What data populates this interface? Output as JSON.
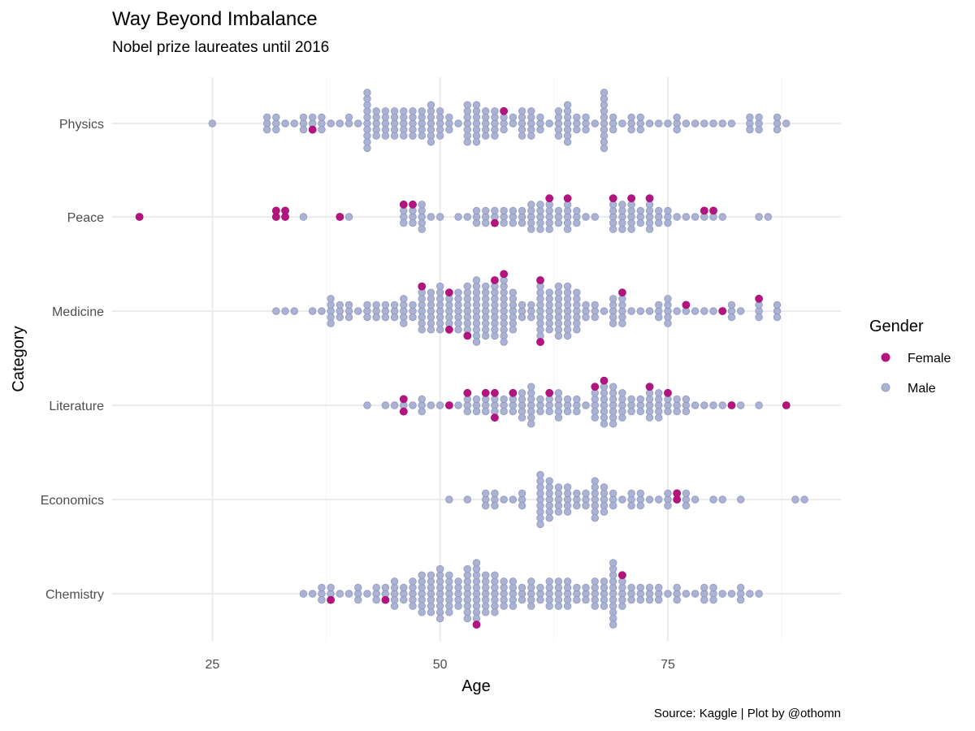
{
  "chart_data": {
    "type": "scatter",
    "subtype": "beeswarm",
    "title": "Way Beyond Imbalance",
    "subtitle": "Nobel prize laureates until 2016",
    "xlabel": "Age",
    "ylabel": "Category",
    "caption": "Source: Kaggle | Plot by @othomn",
    "xlim": [
      14,
      94
    ],
    "x_ticks": [
      25,
      50,
      75
    ],
    "grid": true,
    "legend": {
      "title": "Gender",
      "placement": "right",
      "entries": [
        {
          "name": "Female",
          "color": "#b5137f"
        },
        {
          "name": "Male",
          "color": "#aab3d3"
        }
      ]
    },
    "colors": {
      "Female": "#b5137f",
      "Male": "#aab3d3",
      "MaleStroke": "#8e97bf"
    },
    "categories": [
      "Physics",
      "Peace",
      "Medicine",
      "Literature",
      "Economics",
      "Chemistry"
    ],
    "series": [
      {
        "category": "Physics",
        "female": [
          36,
          57
        ],
        "male": [
          [
            25,
            1
          ],
          [
            31,
            3
          ],
          [
            32,
            3
          ],
          [
            33,
            1
          ],
          [
            34,
            1
          ],
          [
            35,
            3
          ],
          [
            36,
            2
          ],
          [
            37,
            3
          ],
          [
            38,
            1
          ],
          [
            39,
            1
          ],
          [
            40,
            2
          ],
          [
            41,
            1
          ],
          [
            42,
            10
          ],
          [
            43,
            5
          ],
          [
            44,
            5
          ],
          [
            45,
            5
          ],
          [
            46,
            5
          ],
          [
            47,
            5
          ],
          [
            48,
            5
          ],
          [
            49,
            7
          ],
          [
            50,
            5
          ],
          [
            51,
            3
          ],
          [
            52,
            1
          ],
          [
            53,
            7
          ],
          [
            54,
            7
          ],
          [
            55,
            5
          ],
          [
            56,
            5
          ],
          [
            57,
            3
          ],
          [
            58,
            2
          ],
          [
            59,
            5
          ],
          [
            60,
            5
          ],
          [
            61,
            3
          ],
          [
            62,
            1
          ],
          [
            63,
            5
          ],
          [
            64,
            7
          ],
          [
            65,
            3
          ],
          [
            66,
            3
          ],
          [
            67,
            1
          ],
          [
            68,
            10
          ],
          [
            69,
            3
          ],
          [
            70,
            1
          ],
          [
            71,
            3
          ],
          [
            72,
            3
          ],
          [
            73,
            1
          ],
          [
            74,
            1
          ],
          [
            75,
            1
          ],
          [
            76,
            3
          ],
          [
            77,
            1
          ],
          [
            78,
            1
          ],
          [
            79,
            1
          ],
          [
            80,
            1
          ],
          [
            81,
            1
          ],
          [
            82,
            1
          ],
          [
            84,
            3
          ],
          [
            85,
            3
          ],
          [
            87,
            3
          ],
          [
            88,
            1
          ]
        ]
      },
      {
        "category": "Peace",
        "female": [
          17,
          32,
          32,
          33,
          33,
          39,
          46,
          47,
          56,
          62,
          64,
          69,
          71,
          73,
          79,
          80
        ],
        "male": [
          [
            35,
            1
          ],
          [
            40,
            1
          ],
          [
            46,
            3
          ],
          [
            47,
            3
          ],
          [
            48,
            5
          ],
          [
            49,
            1
          ],
          [
            50,
            1
          ],
          [
            52,
            1
          ],
          [
            53,
            1
          ],
          [
            54,
            3
          ],
          [
            55,
            3
          ],
          [
            56,
            2
          ],
          [
            57,
            3
          ],
          [
            58,
            3
          ],
          [
            59,
            3
          ],
          [
            60,
            5
          ],
          [
            61,
            5
          ],
          [
            62,
            5
          ],
          [
            63,
            3
          ],
          [
            64,
            5
          ],
          [
            65,
            3
          ],
          [
            66,
            1
          ],
          [
            67,
            1
          ],
          [
            69,
            5
          ],
          [
            70,
            5
          ],
          [
            71,
            5
          ],
          [
            72,
            3
          ],
          [
            73,
            5
          ],
          [
            74,
            3
          ],
          [
            75,
            3
          ],
          [
            76,
            1
          ],
          [
            77,
            1
          ],
          [
            78,
            1
          ],
          [
            79,
            1
          ],
          [
            80,
            1
          ],
          [
            81,
            1
          ],
          [
            85,
            1
          ],
          [
            86,
            1
          ]
        ]
      },
      {
        "category": "Medicine",
        "female": [
          48,
          51,
          51,
          53,
          56,
          57,
          61,
          61,
          70,
          77,
          81,
          85
        ],
        "male": [
          [
            32,
            1
          ],
          [
            33,
            1
          ],
          [
            34,
            1
          ],
          [
            36,
            1
          ],
          [
            37,
            1
          ],
          [
            38,
            5
          ],
          [
            39,
            3
          ],
          [
            40,
            3
          ],
          [
            41,
            1
          ],
          [
            42,
            3
          ],
          [
            43,
            3
          ],
          [
            44,
            3
          ],
          [
            45,
            3
          ],
          [
            46,
            5
          ],
          [
            47,
            3
          ],
          [
            48,
            7
          ],
          [
            49,
            7
          ],
          [
            50,
            8
          ],
          [
            51,
            5
          ],
          [
            52,
            7
          ],
          [
            53,
            8
          ],
          [
            54,
            11
          ],
          [
            55,
            9
          ],
          [
            56,
            9
          ],
          [
            57,
            11
          ],
          [
            58,
            7
          ],
          [
            59,
            3
          ],
          [
            60,
            3
          ],
          [
            61,
            9
          ],
          [
            62,
            7
          ],
          [
            63,
            9
          ],
          [
            64,
            9
          ],
          [
            65,
            7
          ],
          [
            66,
            3
          ],
          [
            67,
            3
          ],
          [
            68,
            1
          ],
          [
            69,
            5
          ],
          [
            70,
            5
          ],
          [
            71,
            1
          ],
          [
            72,
            1
          ],
          [
            73,
            1
          ],
          [
            74,
            3
          ],
          [
            75,
            5
          ],
          [
            76,
            1
          ],
          [
            77,
            1
          ],
          [
            78,
            1
          ],
          [
            79,
            1
          ],
          [
            80,
            1
          ],
          [
            82,
            3
          ],
          [
            83,
            1
          ],
          [
            85,
            3
          ],
          [
            87,
            3
          ]
        ]
      },
      {
        "category": "Literature",
        "female": [
          46,
          46,
          51,
          53,
          55,
          56,
          56,
          58,
          62,
          67,
          68,
          73,
          75,
          82,
          88
        ],
        "male": [
          [
            42,
            1
          ],
          [
            44,
            1
          ],
          [
            45,
            1
          ],
          [
            46,
            1
          ],
          [
            47,
            1
          ],
          [
            48,
            3
          ],
          [
            49,
            1
          ],
          [
            50,
            1
          ],
          [
            52,
            1
          ],
          [
            53,
            3
          ],
          [
            54,
            3
          ],
          [
            55,
            3
          ],
          [
            56,
            3
          ],
          [
            57,
            3
          ],
          [
            58,
            3
          ],
          [
            59,
            5
          ],
          [
            60,
            7
          ],
          [
            61,
            3
          ],
          [
            62,
            3
          ],
          [
            63,
            5
          ],
          [
            64,
            3
          ],
          [
            65,
            3
          ],
          [
            66,
            1
          ],
          [
            67,
            5
          ],
          [
            68,
            7
          ],
          [
            69,
            7
          ],
          [
            70,
            5
          ],
          [
            71,
            3
          ],
          [
            72,
            3
          ],
          [
            73,
            5
          ],
          [
            74,
            5
          ],
          [
            75,
            3
          ],
          [
            76,
            3
          ],
          [
            77,
            3
          ],
          [
            78,
            1
          ],
          [
            79,
            1
          ],
          [
            80,
            1
          ],
          [
            81,
            1
          ],
          [
            83,
            1
          ],
          [
            85,
            1
          ]
        ]
      },
      {
        "category": "Economics",
        "female": [
          76,
          76
        ],
        "male": [
          [
            51,
            1
          ],
          [
            53,
            1
          ],
          [
            55,
            3
          ],
          [
            56,
            3
          ],
          [
            57,
            1
          ],
          [
            58,
            1
          ],
          [
            59,
            3
          ],
          [
            61,
            9
          ],
          [
            62,
            7
          ],
          [
            63,
            5
          ],
          [
            64,
            5
          ],
          [
            65,
            3
          ],
          [
            66,
            3
          ],
          [
            67,
            7
          ],
          [
            68,
            5
          ],
          [
            69,
            3
          ],
          [
            70,
            1
          ],
          [
            71,
            3
          ],
          [
            72,
            3
          ],
          [
            73,
            1
          ],
          [
            74,
            1
          ],
          [
            75,
            3
          ],
          [
            77,
            3
          ],
          [
            78,
            1
          ],
          [
            80,
            1
          ],
          [
            81,
            1
          ],
          [
            83,
            1
          ],
          [
            89,
            1
          ],
          [
            90,
            1
          ]
        ]
      },
      {
        "category": "Chemistry",
        "female": [
          38,
          44,
          54,
          70
        ],
        "male": [
          [
            35,
            1
          ],
          [
            36,
            1
          ],
          [
            37,
            3
          ],
          [
            38,
            2
          ],
          [
            39,
            1
          ],
          [
            40,
            1
          ],
          [
            41,
            3
          ],
          [
            42,
            1
          ],
          [
            43,
            3
          ],
          [
            44,
            2
          ],
          [
            45,
            5
          ],
          [
            46,
            3
          ],
          [
            47,
            5
          ],
          [
            48,
            7
          ],
          [
            49,
            7
          ],
          [
            50,
            9
          ],
          [
            51,
            7
          ],
          [
            52,
            5
          ],
          [
            53,
            9
          ],
          [
            54,
            10
          ],
          [
            55,
            7
          ],
          [
            56,
            7
          ],
          [
            57,
            5
          ],
          [
            58,
            5
          ],
          [
            59,
            3
          ],
          [
            60,
            5
          ],
          [
            61,
            3
          ],
          [
            62,
            5
          ],
          [
            63,
            5
          ],
          [
            64,
            5
          ],
          [
            65,
            3
          ],
          [
            66,
            3
          ],
          [
            67,
            5
          ],
          [
            68,
            5
          ],
          [
            69,
            11
          ],
          [
            70,
            5
          ],
          [
            71,
            3
          ],
          [
            72,
            3
          ],
          [
            73,
            3
          ],
          [
            74,
            3
          ],
          [
            75,
            1
          ],
          [
            76,
            3
          ],
          [
            77,
            1
          ],
          [
            78,
            1
          ],
          [
            79,
            3
          ],
          [
            80,
            3
          ],
          [
            81,
            1
          ],
          [
            82,
            1
          ],
          [
            83,
            3
          ],
          [
            84,
            1
          ],
          [
            85,
            1
          ]
        ]
      }
    ]
  }
}
